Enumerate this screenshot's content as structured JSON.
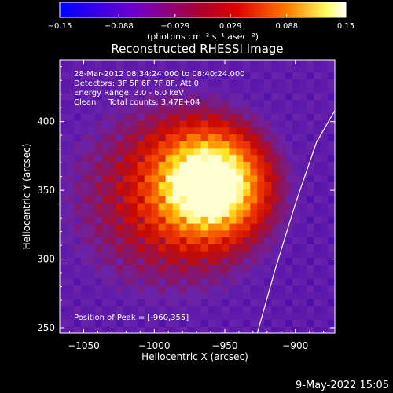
{
  "chart_data": {
    "type": "heatmap",
    "title": "Reconstructed RHESSI Image",
    "xlabel": "Heliocentric X (arcsec)",
    "ylabel": "Heliocentric Y (arcsec)",
    "xlim": [
      -1067,
      -872
    ],
    "ylim": [
      246,
      445
    ],
    "xticks": [
      -1050,
      -1000,
      -950,
      -900
    ],
    "xtick_labels": [
      "−1050",
      "−1000",
      "−950",
      "−900"
    ],
    "yticks": [
      250,
      300,
      350,
      400
    ],
    "ytick_labels": [
      "250",
      "300",
      "350",
      "400"
    ],
    "colorbar": {
      "min": -0.15,
      "max": 0.15,
      "ticks": [
        -0.15,
        -0.088,
        -0.029,
        0.029,
        0.088,
        0.15
      ],
      "tick_labels": [
        "−0.15",
        "−0.088",
        "−0.029",
        "0.029",
        "0.088",
        "0.15"
      ],
      "unit_label": "(photons cm⁻² s⁻¹ asec⁻²)",
      "colors": [
        "#0000ff",
        "#7a00c8",
        "#c80000",
        "#ff7a00",
        "#ffff60",
        "#ffffff"
      ]
    },
    "annotations": [
      "28-Mar-2012 08:34:24.000 to 08:40:24.000",
      "Detectors: 3F 5F 6F 7F 8F, Att 0",
      "Energy Range: 3.0 - 6.0 keV",
      "Clean     Total counts: 3.47E+04"
    ],
    "peak_label": "Position of Peak = [-960,355]",
    "peak": [
      -960,
      355
    ],
    "limb_curve": {
      "x": [
        -927,
        -915,
        -900,
        -885,
        -872
      ],
      "y": [
        246,
        290,
        340,
        385,
        408
      ]
    },
    "timestamp": "9-May-2022 15:05"
  }
}
